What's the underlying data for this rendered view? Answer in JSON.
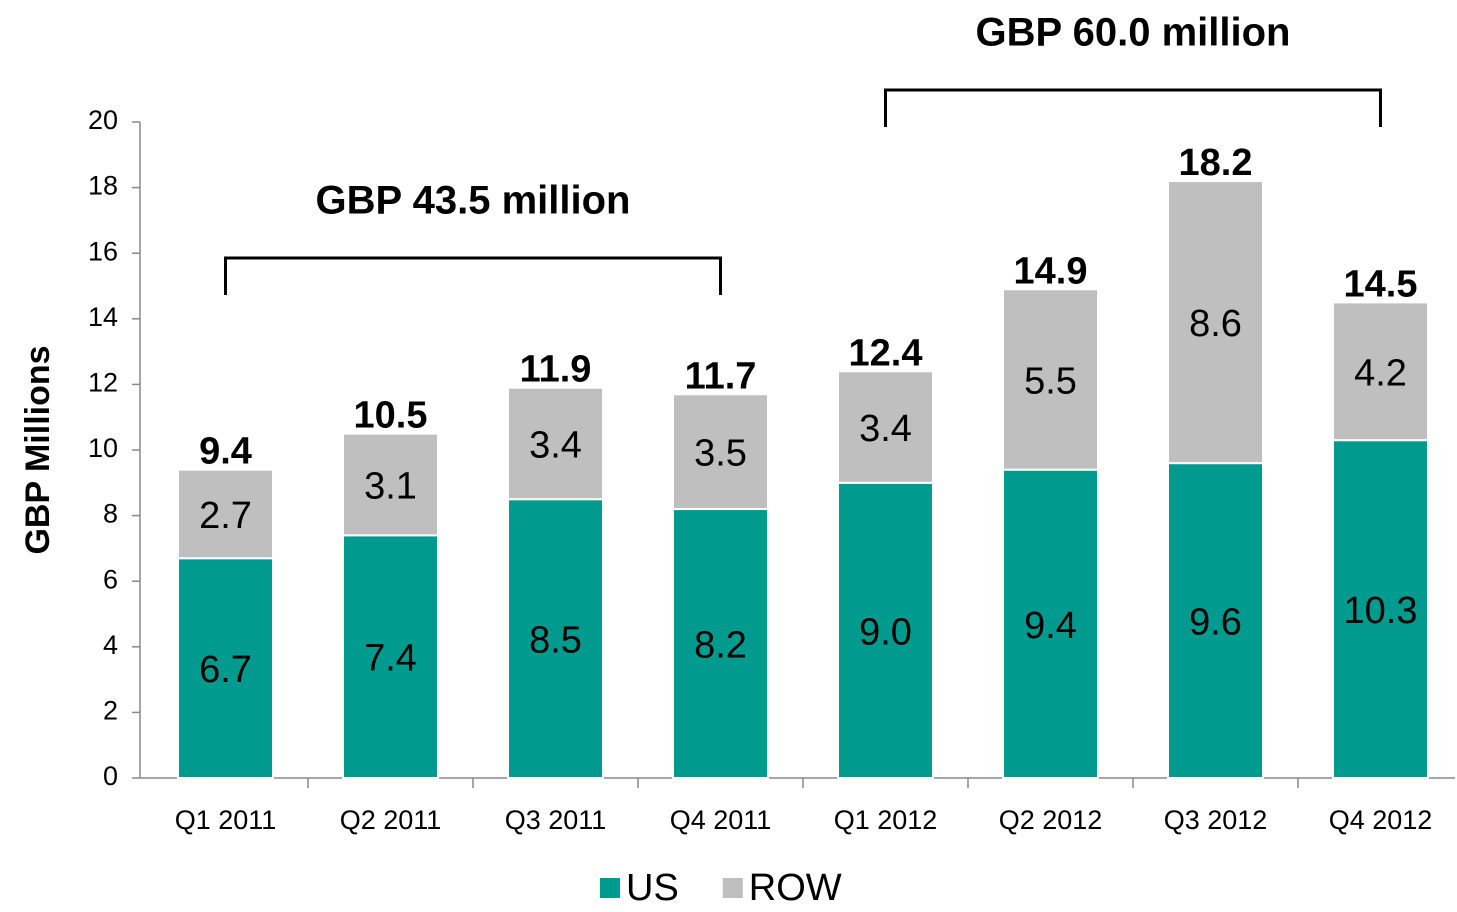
{
  "chart_data": {
    "type": "stacked_bar",
    "y_label": "GBP Millions",
    "categories": [
      "Q1 2011",
      "Q2 2011",
      "Q3 2011",
      "Q4 2011",
      "Q1 2012",
      "Q2 2012",
      "Q3 2012",
      "Q4 2012"
    ],
    "series": [
      {
        "name": "US",
        "color": "#009a8e",
        "values": [
          6.7,
          7.4,
          8.5,
          8.2,
          9.0,
          9.4,
          9.6,
          10.3
        ],
        "value_labels": [
          "6.7",
          "7.4",
          "8.5",
          "8.2",
          "9.0",
          "9.4",
          "9.6",
          "10.3"
        ]
      },
      {
        "name": "ROW",
        "color": "#bfbfbf",
        "values": [
          2.7,
          3.1,
          3.4,
          3.5,
          3.4,
          5.5,
          8.6,
          4.2
        ]
      }
    ],
    "totals": [
      9.4,
      10.5,
      11.9,
      11.7,
      12.4,
      14.9,
      18.2,
      14.5
    ],
    "annotations": [
      "GBP 43.5 million",
      "GBP 60.0 million"
    ],
    "ylim": [
      0,
      20
    ],
    "yticks": [
      0,
      2,
      4,
      6,
      8,
      10,
      12,
      14,
      16,
      18,
      20
    ],
    "legend": "bottom"
  }
}
